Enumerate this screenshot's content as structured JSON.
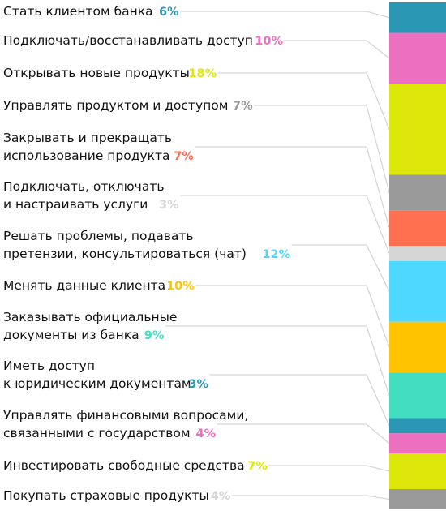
{
  "chart_data": {
    "type": "bar",
    "orientation": "stacked-vertical",
    "unit": "%",
    "categories": [
      [
        "Стать клиентом банка"
      ],
      [
        "Подключать/восстанавливать доступ"
      ],
      [
        "Открывать новые продукты"
      ],
      [
        "Управлять продуктом и доступом"
      ],
      [
        "Закрывать и прекращать",
        "использование продукта"
      ],
      [
        "Подключать, отключать",
        "и настраивать услуги"
      ],
      [
        "Решать проблемы, подавать",
        "претензии, консультироваться (чат)"
      ],
      [
        "Менять данные клиента"
      ],
      [
        "Заказывать официальные",
        "документы из банка"
      ],
      [
        "Иметь доступ",
        "к юридическим документам"
      ],
      [
        "Управлять финансовыми вопросами,",
        "связанными с государством"
      ],
      [
        "Инвестировать свободные средства"
      ],
      [
        "Покупать страховые продукты"
      ]
    ],
    "values": [
      6,
      10,
      18,
      7,
      7,
      3,
      12,
      10,
      9,
      3,
      4,
      7,
      4
    ],
    "value_labels": [
      "6%",
      "10%",
      "18%",
      "7%",
      "7%",
      "3%",
      "12%",
      "10%",
      "9%",
      "3%",
      "4%",
      "7%",
      "4%"
    ],
    "colors": [
      "#2A97B5",
      "#EC6FC0",
      "#DDE70A",
      "#9A9A9A",
      "#FF7050",
      "#D6D6D6",
      "#4FD8FF",
      "#FFC300",
      "#43DDC1",
      "#2A97B5",
      "#EC6FC0",
      "#DDE70A",
      "#9A9A9A"
    ],
    "label_colors": [
      "#2A97B5",
      "#EC6FC0",
      "#DDE70A",
      "#9A9A9A",
      "#FF7050",
      "#D6D6D6",
      "#4FD8FF",
      "#FFC300",
      "#43DDC1",
      "#2A97B5",
      "#EC6FC0",
      "#DDE70A",
      "#D6D6D6"
    ],
    "title": "",
    "xlabel": "",
    "ylabel": "",
    "legend": "none",
    "grid": false
  }
}
